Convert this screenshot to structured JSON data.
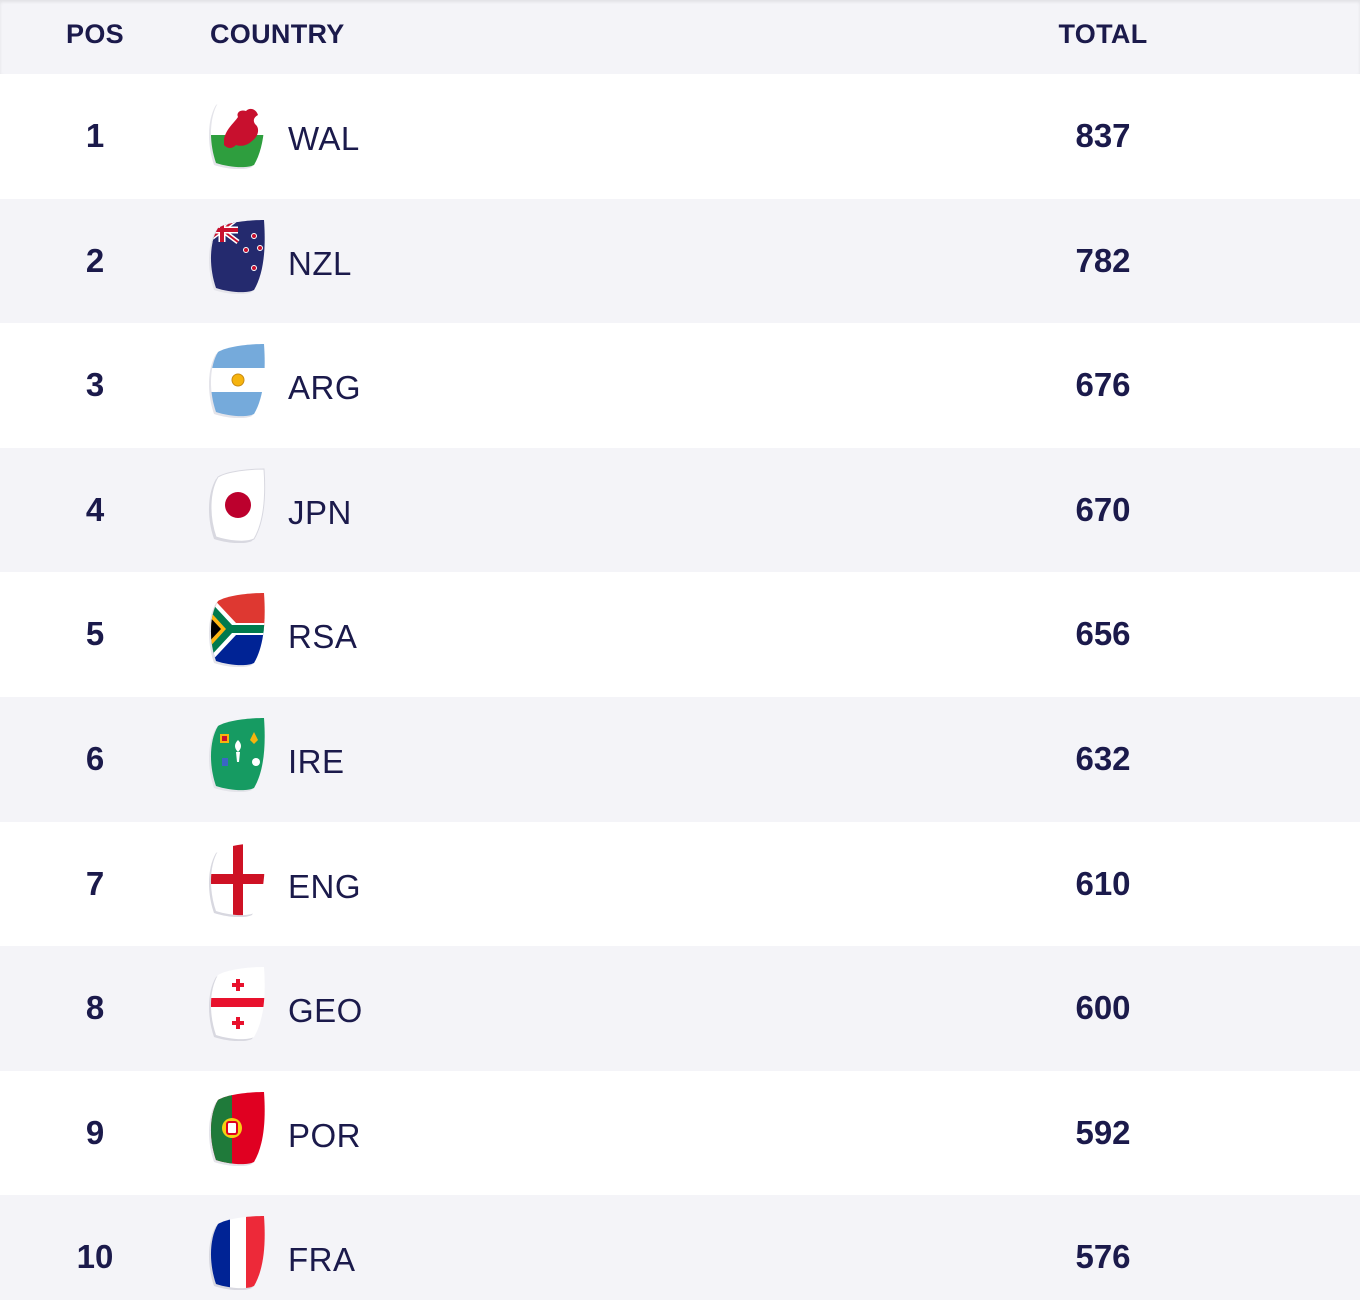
{
  "header": {
    "pos": "POS",
    "country": "COUNTRY",
    "total": "TOTAL"
  },
  "rows": [
    {
      "pos": "1",
      "country": "WAL",
      "total": "837",
      "flag_icon": "wales-flag-icon"
    },
    {
      "pos": "2",
      "country": "NZL",
      "total": "782",
      "flag_icon": "new-zealand-flag-icon"
    },
    {
      "pos": "3",
      "country": "ARG",
      "total": "676",
      "flag_icon": "argentina-flag-icon"
    },
    {
      "pos": "4",
      "country": "JPN",
      "total": "670",
      "flag_icon": "japan-flag-icon"
    },
    {
      "pos": "5",
      "country": "RSA",
      "total": "656",
      "flag_icon": "south-africa-flag-icon"
    },
    {
      "pos": "6",
      "country": "IRE",
      "total": "632",
      "flag_icon": "ireland-flag-icon"
    },
    {
      "pos": "7",
      "country": "ENG",
      "total": "610",
      "flag_icon": "england-flag-icon"
    },
    {
      "pos": "8",
      "country": "GEO",
      "total": "600",
      "flag_icon": "georgia-flag-icon"
    },
    {
      "pos": "9",
      "country": "POR",
      "total": "592",
      "flag_icon": "portugal-flag-icon"
    },
    {
      "pos": "10",
      "country": "FRA",
      "total": "576",
      "flag_icon": "france-flag-icon"
    }
  ],
  "colors": {
    "text": "#1b1a4b",
    "header_bg": "#f4f4f8",
    "row_alt_bg": "#f4f4f8",
    "row_bg": "#ffffff"
  }
}
